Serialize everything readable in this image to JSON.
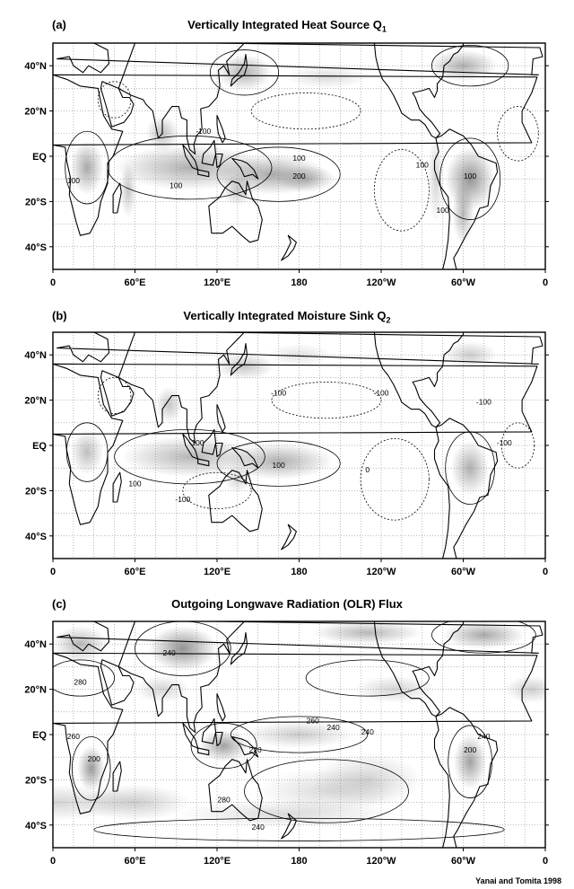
{
  "panels": [
    {
      "label": "(a)",
      "title": "Vertically Integrated Heat Source Q",
      "title_sub": "1",
      "contour_labels": [
        "100",
        "100",
        "-100",
        "100",
        "200",
        "100",
        "100",
        "100"
      ]
    },
    {
      "label": "(b)",
      "title": "Vertically Integrated Moisture Sink Q",
      "title_sub": "2",
      "contour_labels": [
        "-100",
        "100",
        "-100",
        "0",
        "-100",
        "100",
        "-100",
        "-100",
        "-100"
      ]
    },
    {
      "label": "(c)",
      "title": "Outgoing Longwave Radiation (OLR) Flux",
      "title_sub": "",
      "contour_labels": [
        "260",
        "200",
        "240",
        "280",
        "260",
        "240",
        "240",
        "220",
        "240",
        "200",
        "280",
        "240"
      ]
    }
  ],
  "axes": {
    "lat_labels": [
      "40°N",
      "20°N",
      "EQ",
      "20°S",
      "40°S"
    ],
    "lon_labels": [
      "0",
      "60°E",
      "120°E",
      "180",
      "120°W",
      "60°W",
      "0"
    ]
  },
  "credit": "Yanai and Tomita 1998",
  "colors": {
    "shade": "#6e6e6e",
    "frame": "#000000",
    "coast": "#000000"
  }
}
